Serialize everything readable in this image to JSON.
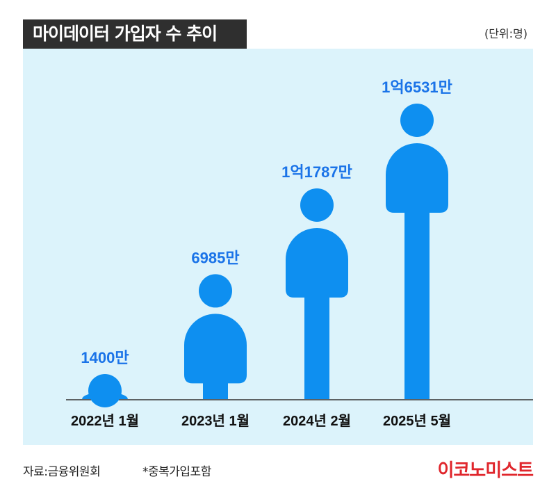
{
  "header": {
    "title": "마이데이터 가입자 수 추이",
    "unit": "(단위:명)"
  },
  "chart_data": {
    "type": "bar",
    "title": "마이데이터 가입자 수 추이",
    "unit": "(단위:명)",
    "categories": [
      "2022년 1월",
      "2023년 1월",
      "2024년 2월",
      "2025년 5월"
    ],
    "values": [
      14000000,
      69850000,
      117870000,
      165310000
    ],
    "value_labels": [
      "1400만",
      "6985만",
      "1억1787만",
      "1억6531만"
    ],
    "bar_color": "#0e8ff0"
  },
  "footer": {
    "source": "자료:금융위원회",
    "note": "*중복가입포함",
    "logo": "이코노미스트"
  },
  "colors": {
    "header_bg": "#2f2f2f",
    "plot_bg": "#dcf3fb",
    "label": "#1a73e8",
    "logo": "#e0262c"
  }
}
